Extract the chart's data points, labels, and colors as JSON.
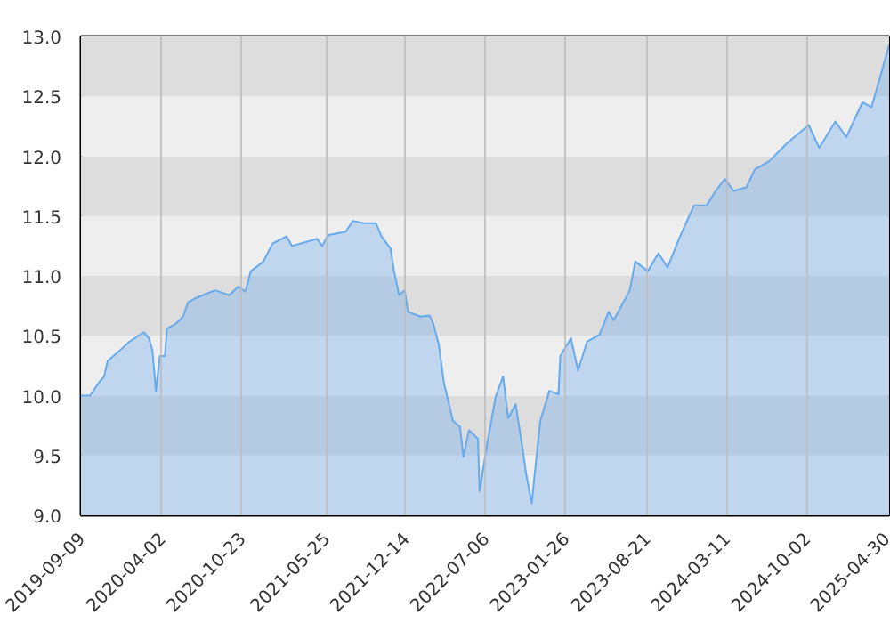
{
  "chart_data": {
    "type": "area",
    "x": [
      "2019-09-09",
      "2019-09-14",
      "2019-10-02",
      "2019-10-25",
      "2019-11-07",
      "2019-11-16",
      "2019-12-18",
      "2020-01-10",
      "2020-02-16",
      "2020-02-29",
      "2020-03-09",
      "2020-03-18",
      "2020-03-28",
      "2020-04-10",
      "2020-04-15",
      "2020-05-08",
      "2020-05-26",
      "2020-06-08",
      "2020-07-01",
      "2020-08-16",
      "2020-09-21",
      "2020-10-14",
      "2020-11-01",
      "2020-11-15",
      "2020-12-17",
      "2021-01-09",
      "2021-02-14",
      "2021-02-28",
      "2021-05-03",
      "2021-05-16",
      "2021-05-30",
      "2021-07-15",
      "2021-08-02",
      "2021-08-29",
      "2021-09-30",
      "2021-10-14",
      "2021-11-06",
      "2021-11-15",
      "2021-11-28",
      "2021-12-12",
      "2021-12-21",
      "2022-01-22",
      "2022-02-14",
      "2022-02-23",
      "2022-03-09",
      "2022-03-22",
      "2022-04-14",
      "2022-05-02",
      "2022-05-11",
      "2022-05-25",
      "2022-06-17",
      "2022-06-21",
      "2022-07-10",
      "2022-08-01",
      "2022-08-20",
      "2022-09-02",
      "2022-09-21",
      "2022-10-09",
      "2022-10-18",
      "2022-11-01",
      "2022-11-10",
      "2022-11-23",
      "2022-12-16",
      "2023-01-08",
      "2023-01-13",
      "2023-02-09",
      "2023-02-27",
      "2023-03-22",
      "2023-04-23",
      "2023-05-16",
      "2023-05-29",
      "2023-07-09",
      "2023-07-23",
      "2023-08-24",
      "2023-09-20",
      "2023-10-13",
      "2023-11-14",
      "2023-12-20",
      "2024-01-21",
      "2024-02-13",
      "2024-03-07",
      "2024-03-30",
      "2024-05-01",
      "2024-05-23",
      "2024-06-29",
      "2024-08-13",
      "2024-10-07",
      "2024-11-03",
      "2024-12-14",
      "2025-01-11",
      "2025-02-21",
      "2025-03-16",
      "2025-04-07",
      "2025-04-30"
    ],
    "series": [
      {
        "color": "#66aaee",
        "values": [
          10.0,
          10.0,
          10.0,
          10.11,
          10.16,
          10.29,
          10.38,
          10.45,
          10.53,
          10.48,
          10.38,
          10.04,
          10.33,
          10.33,
          10.56,
          10.6,
          10.66,
          10.78,
          10.82,
          10.88,
          10.84,
          10.91,
          10.87,
          11.04,
          11.12,
          11.27,
          11.33,
          11.25,
          11.31,
          11.25,
          11.34,
          11.37,
          11.46,
          11.44,
          11.44,
          11.33,
          11.23,
          11.04,
          10.84,
          10.88,
          10.7,
          10.66,
          10.67,
          10.6,
          10.43,
          10.11,
          9.79,
          9.74,
          9.49,
          9.71,
          9.64,
          9.2,
          9.59,
          9.99,
          10.16,
          9.81,
          9.93,
          9.55,
          9.34,
          9.1,
          9.39,
          9.79,
          10.04,
          10.01,
          10.33,
          10.48,
          10.21,
          10.45,
          10.51,
          10.7,
          10.63,
          10.88,
          11.12,
          11.04,
          11.19,
          11.07,
          11.33,
          11.59,
          11.59,
          11.71,
          11.81,
          11.71,
          11.74,
          11.89,
          11.96,
          12.11,
          12.26,
          12.07,
          12.29,
          12.16,
          12.45,
          12.41,
          12.66,
          12.93
        ]
      }
    ],
    "xlim": [
      "2019-09-09",
      "2025-04-30"
    ],
    "xticks": [
      "2019-09-09",
      "2020-04-02",
      "2020-10-23",
      "2021-05-25",
      "2021-12-14",
      "2022-07-06",
      "2023-01-26",
      "2023-08-21",
      "2024-03-11",
      "2024-10-02",
      "2025-04-30"
    ],
    "ylim": [
      9.0,
      13.0
    ],
    "yticks": [
      {
        "value": 9.0,
        "label": "9.0"
      },
      {
        "value": 9.5,
        "label": "9.5"
      },
      {
        "value": 10.0,
        "label": "10.0"
      },
      {
        "value": 10.5,
        "label": "10.5"
      },
      {
        "value": 11.0,
        "label": "11.0"
      },
      {
        "value": 11.5,
        "label": "11.5"
      },
      {
        "value": 12.0,
        "label": "12.0"
      },
      {
        "value": 12.5,
        "label": "12.5"
      },
      {
        "value": 13.0,
        "label": "13.0"
      }
    ],
    "bands": [
      {
        "axis": "y",
        "from": 9.0,
        "to": 9.5,
        "color": "#eeeeee"
      },
      {
        "axis": "y",
        "from": 9.5,
        "to": 10.0,
        "color": "#dddddd"
      },
      {
        "axis": "y",
        "from": 10.0,
        "to": 10.5,
        "color": "#eeeeee"
      },
      {
        "axis": "y",
        "from": 10.5,
        "to": 11.0,
        "color": "#dddddd"
      },
      {
        "axis": "y",
        "from": 11.0,
        "to": 11.5,
        "color": "#eeeeee"
      },
      {
        "axis": "y",
        "from": 11.5,
        "to": 12.0,
        "color": "#dddddd"
      },
      {
        "axis": "y",
        "from": 12.0,
        "to": 12.5,
        "color": "#eeeeee"
      },
      {
        "axis": "y",
        "from": 12.5,
        "to": 13.0,
        "color": "#dddddd"
      }
    ],
    "grid": "x"
  }
}
